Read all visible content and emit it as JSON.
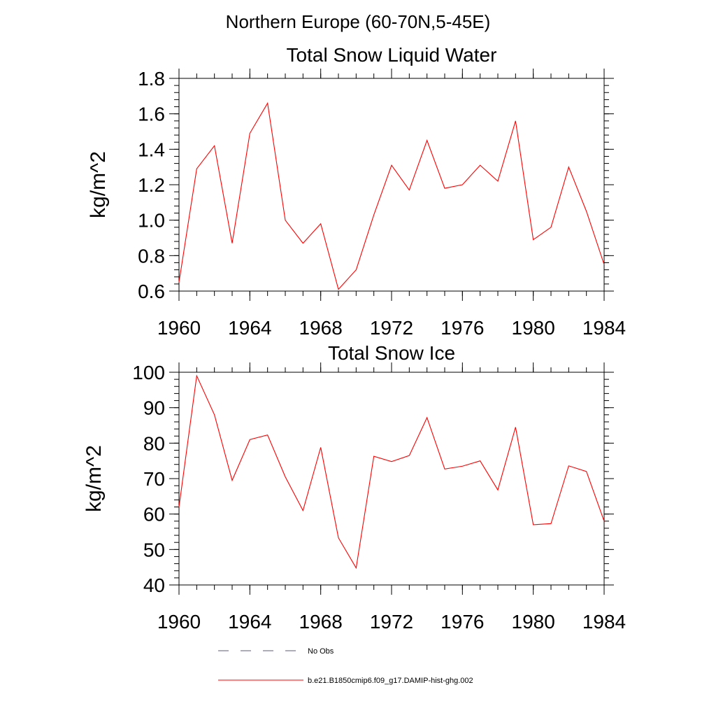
{
  "figure": {
    "suptitle": "Northern Europe (60-70N,5-45E)",
    "legend": [
      {
        "label": "No Obs",
        "style": "dashed",
        "color": "#5a5a7a"
      },
      {
        "label": "b.e21.B1850cmip6.f09_g17.DAMIP-hist-ghg.002",
        "style": "solid",
        "color": "#ff0000"
      }
    ]
  },
  "chart_data": [
    {
      "type": "line",
      "title": "Total Snow Liquid Water",
      "xlabel": "",
      "ylabel": "kg/m^2",
      "xlim": [
        1960,
        1984
      ],
      "ylim": [
        0.6,
        1.8
      ],
      "xticks": [
        1960,
        1964,
        1968,
        1972,
        1976,
        1980,
        1984
      ],
      "xtick_labels": [
        "1960",
        "1964",
        "1968",
        "1972",
        "1976",
        "1980",
        "1984"
      ],
      "yticks": [
        0.6,
        0.8,
        1.0,
        1.2,
        1.4,
        1.6,
        1.8
      ],
      "ytick_labels": [
        "0.6",
        "0.8",
        "1.0",
        "1.2",
        "1.4",
        "1.6",
        "1.8"
      ],
      "yminor_step": 0.04,
      "series": [
        {
          "name": "b.e21.B1850cmip6.f09_g17.DAMIP-hist-ghg.002",
          "color": "#ff0000",
          "x": [
            1960,
            1961,
            1962,
            1963,
            1964,
            1965,
            1966,
            1967,
            1968,
            1969,
            1970,
            1971,
            1972,
            1973,
            1974,
            1975,
            1976,
            1977,
            1978,
            1979,
            1980,
            1981,
            1982,
            1983,
            1984
          ],
          "y": [
            0.65,
            1.29,
            1.42,
            0.87,
            1.49,
            1.66,
            1.0,
            0.87,
            0.98,
            0.61,
            0.72,
            1.03,
            1.31,
            1.17,
            1.45,
            1.18,
            1.2,
            1.31,
            1.22,
            1.56,
            0.89,
            0.96,
            1.3,
            1.05,
            0.75
          ]
        }
      ]
    },
    {
      "type": "line",
      "title": "Total Snow Ice",
      "xlabel": "",
      "ylabel": "kg/m^2",
      "xlim": [
        1960,
        1984
      ],
      "ylim": [
        40,
        100
      ],
      "xticks": [
        1960,
        1964,
        1968,
        1972,
        1976,
        1980,
        1984
      ],
      "xtick_labels": [
        "1960",
        "1964",
        "1968",
        "1972",
        "1976",
        "1980",
        "1984"
      ],
      "yticks": [
        40,
        50,
        60,
        70,
        80,
        90,
        100
      ],
      "ytick_labels": [
        "40",
        "50",
        "60",
        "70",
        "80",
        "90",
        "100"
      ],
      "yminor_step": 2,
      "series": [
        {
          "name": "b.e21.B1850cmip6.f09_g17.DAMIP-hist-ghg.002",
          "color": "#ff0000",
          "x": [
            1960,
            1961,
            1962,
            1963,
            1964,
            1965,
            1966,
            1967,
            1968,
            1969,
            1970,
            1971,
            1972,
            1973,
            1974,
            1975,
            1976,
            1977,
            1978,
            1979,
            1980,
            1981,
            1982,
            1983,
            1984
          ],
          "y": [
            62,
            99,
            88,
            69.5,
            81,
            82.3,
            70.5,
            61,
            78.8,
            53.3,
            44.8,
            76.3,
            74.8,
            76.5,
            87.2,
            72.7,
            73.5,
            75,
            66.8,
            84.5,
            57,
            57.3,
            73.6,
            72,
            58
          ]
        }
      ]
    }
  ]
}
